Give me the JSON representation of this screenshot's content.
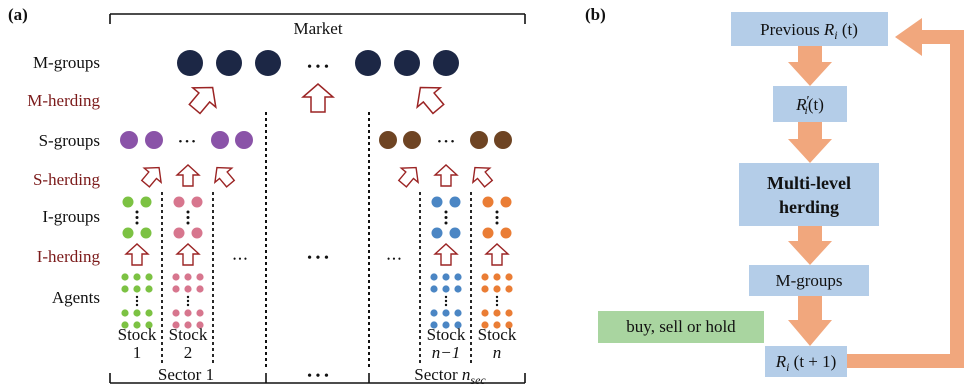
{
  "panel_a": {
    "tag": "(a)",
    "market": "Market",
    "rows": {
      "m_groups": "M-groups",
      "m_herding": "M-herding",
      "s_groups": "S-groups",
      "s_herding": "S-herding",
      "i_groups": "I-groups",
      "i_herding": "I-herding",
      "agents": "Agents"
    },
    "stocks": [
      {
        "word": "Stock",
        "index": "1"
      },
      {
        "word": "Stock",
        "index": "2"
      },
      {
        "word": "Stock",
        "index": "n−1"
      },
      {
        "word": "Stock",
        "index": "n"
      }
    ],
    "sector1": "Sector 1",
    "sector_last": "Sector ",
    "sector_last_n": "n",
    "sector_last_sub": "sec",
    "dots": "• • •",
    "colors": {
      "m_group": "#1c2745",
      "s_group_left": "#8a53a8",
      "s_group_right": "#6e4423",
      "stock1": "#7cc243",
      "stock2": "#d7768e",
      "stock_n_minus_1": "#4b86c4",
      "stock_n": "#ea7d35",
      "herding_arrow": "#9b2424"
    }
  },
  "panel_b": {
    "tag": "(b)",
    "previous_prefix": "Previous ",
    "previous_R": "R",
    "previous_i": "i",
    "previous_t": " (t)",
    "rprime_R": "R",
    "rprime_i": "i",
    "rprime_prime": "′",
    "rprime_t": "(t)",
    "multi_line1": "Multi-level",
    "multi_line2": "herding",
    "m_groups": "M-groups",
    "decision": "buy, sell or hold",
    "next_R": "R",
    "next_i": "i",
    "next_t": " (t + 1)",
    "colors": {
      "box": "#b4cde8",
      "decision_box": "#a9d5a0",
      "arrow": "#f1a77d"
    }
  }
}
